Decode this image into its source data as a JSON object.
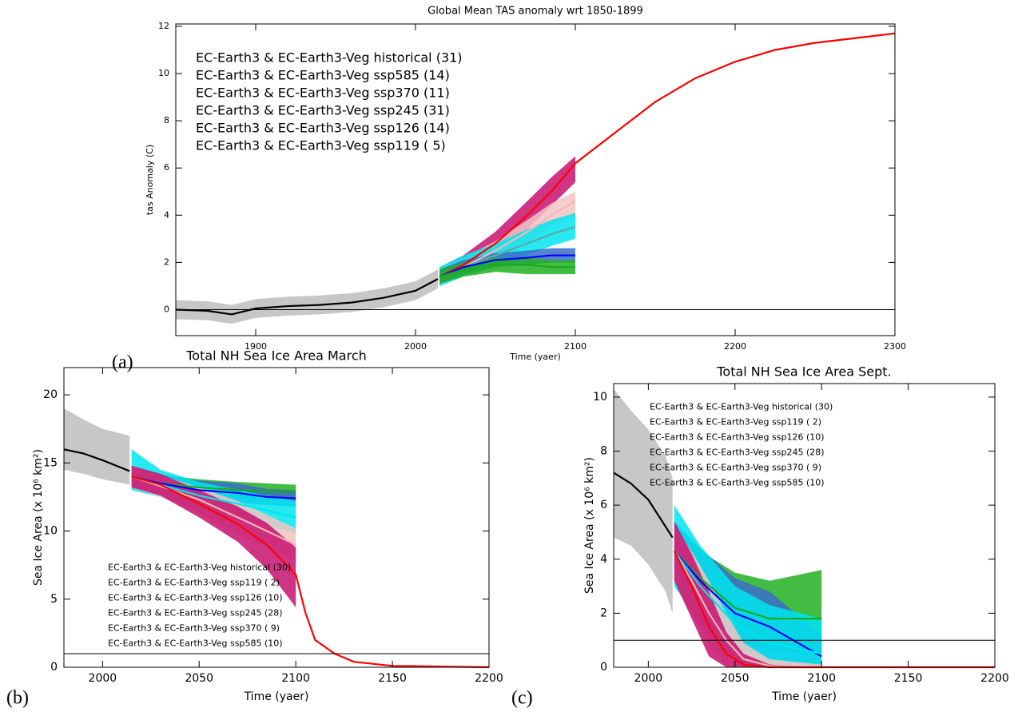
{
  "chart_data": [
    {
      "type": "line",
      "panel_label": "(a)",
      "title": "Global Mean TAS anomaly wrt 1850-1899",
      "xlabel": "Time (yaer)",
      "ylabel": "tas Anomaly (C)",
      "xlim": [
        1850,
        2300
      ],
      "ylim": [
        -1.1,
        12.1
      ],
      "xticks": [
        1900,
        2000,
        2100,
        2200,
        2300
      ],
      "yticks": [
        0,
        2,
        4,
        6,
        8,
        10,
        12
      ],
      "hline": 0,
      "legend_position": "upper left",
      "series": [
        {
          "name": "EC-Earth3 & EC-Earth3-Veg historical (31)",
          "color": "#000000",
          "band_color": "#bdbdbd",
          "x": [
            1850,
            1870,
            1885,
            1900,
            1920,
            1940,
            1960,
            1980,
            2000,
            2014
          ],
          "values": [
            0,
            -0.05,
            -0.2,
            0.05,
            0.15,
            0.2,
            0.3,
            0.5,
            0.8,
            1.3
          ],
          "low": [
            -0.4,
            -0.45,
            -0.6,
            -0.35,
            -0.25,
            -0.2,
            -0.1,
            0.1,
            0.4,
            0.9
          ],
          "high": [
            0.4,
            0.35,
            0.2,
            0.45,
            0.55,
            0.6,
            0.7,
            0.9,
            1.2,
            1.7
          ]
        },
        {
          "name": "EC-Earth3 & EC-Earth3-Veg ssp585 (14)",
          "color": "#ff0000",
          "band_color": "#c8106e",
          "x": [
            2015,
            2030,
            2050,
            2070,
            2085,
            2100,
            2125,
            2150,
            2175,
            2200,
            2225,
            2250,
            2275,
            2300
          ],
          "values": [
            1.4,
            1.9,
            2.8,
            4.0,
            5.0,
            6.2,
            7.5,
            8.8,
            9.8,
            10.5,
            11.0,
            11.3,
            11.5,
            11.7
          ],
          "low": [
            1.0,
            1.5,
            2.3,
            3.4,
            4.4,
            5.4,
            null,
            null,
            null,
            null,
            null,
            null,
            null,
            null
          ],
          "high": [
            1.8,
            2.3,
            3.3,
            4.6,
            5.6,
            6.5,
            null,
            null,
            null,
            null,
            null,
            null,
            null,
            null
          ]
        },
        {
          "name": "EC-Earth3 & EC-Earth3-Veg ssp370 (11)",
          "color": "#f4b6b6",
          "band_color": "#f4c4c4",
          "x": [
            2015,
            2030,
            2050,
            2070,
            2085,
            2100
          ],
          "values": [
            1.4,
            1.8,
            2.5,
            3.3,
            4.0,
            4.6
          ],
          "low": [
            1.0,
            1.4,
            2.1,
            2.8,
            3.5,
            4.0
          ],
          "high": [
            1.8,
            2.2,
            2.9,
            3.8,
            4.5,
            5.0
          ]
        },
        {
          "name": "EC-Earth3 & EC-Earth3-Veg ssp245 (31)",
          "color": "#5fa8a8",
          "band_color": "#00e5ee",
          "x": [
            2015,
            2030,
            2050,
            2070,
            2085,
            2100
          ],
          "values": [
            1.4,
            1.8,
            2.3,
            2.8,
            3.2,
            3.5
          ],
          "low": [
            1.0,
            1.4,
            1.8,
            2.3,
            2.7,
            3.0
          ],
          "high": [
            1.8,
            2.3,
            2.8,
            3.4,
            3.8,
            4.1
          ]
        },
        {
          "name": "EC-Earth3 & EC-Earth3-Veg ssp126 (14)",
          "color": "#0000ff",
          "band_color": "#3a6ec8",
          "x": [
            2015,
            2030,
            2050,
            2070,
            2085,
            2100
          ],
          "values": [
            1.4,
            1.8,
            2.1,
            2.2,
            2.3,
            2.3
          ],
          "low": [
            1.1,
            1.5,
            1.8,
            1.9,
            2.0,
            2.0
          ],
          "high": [
            1.7,
            2.1,
            2.4,
            2.5,
            2.6,
            2.6
          ]
        },
        {
          "name": "EC-Earth3 & EC-Earth3-Veg ssp119 ( 5)",
          "color": "#1aaa1a",
          "band_color": "#22b022",
          "x": [
            2015,
            2030,
            2050,
            2070,
            2085,
            2100
          ],
          "values": [
            1.4,
            1.7,
            1.9,
            1.9,
            1.8,
            1.8
          ],
          "low": [
            1.1,
            1.4,
            1.6,
            1.5,
            1.5,
            1.5
          ],
          "high": [
            1.7,
            2.0,
            2.2,
            2.2,
            2.1,
            2.1
          ]
        }
      ]
    },
    {
      "type": "line",
      "panel_label": "(b)",
      "title": "Total NH Sea Ice Area March",
      "xlabel": "Time (yaer)",
      "ylabel": "Sea Ice Area (x 10⁶ km²)",
      "xlim": [
        1980,
        2200
      ],
      "ylim": [
        0,
        22
      ],
      "xticks": [
        2000,
        2050,
        2100,
        2150,
        2200
      ],
      "yticks": [
        0,
        5,
        10,
        15,
        20
      ],
      "hline": 1,
      "legend_position": "lower left",
      "series": [
        {
          "name": "EC-Earth3 & EC-Earth3-Veg historical (30)",
          "color": "#000000",
          "band_color": "#bdbdbd",
          "x": [
            1980,
            1990,
            2000,
            2014
          ],
          "values": [
            16,
            15.7,
            15.2,
            14.4
          ],
          "low": [
            14.5,
            14.2,
            13.8,
            13.4
          ],
          "high": [
            19,
            18.2,
            17.5,
            17.0
          ]
        },
        {
          "name": "EC-Earth3 & EC-Earth3-Veg ssp119 ( 2)",
          "color": "#1aaa1a",
          "band_color": "#22b022",
          "x": [
            2015,
            2030,
            2050,
            2070,
            2085,
            2100
          ],
          "values": [
            14,
            13.5,
            13.2,
            13,
            12.9,
            12.9
          ],
          "low": [
            13.4,
            12.9,
            12.6,
            12.4,
            12.3,
            12.3
          ],
          "high": [
            14.6,
            14.1,
            13.8,
            13.6,
            13.5,
            13.4
          ]
        },
        {
          "name": "EC-Earth3 & EC-Earth3-Veg ssp126 (10)",
          "color": "#0000ff",
          "band_color": "#3a6ec8",
          "x": [
            2015,
            2030,
            2050,
            2070,
            2085,
            2100
          ],
          "values": [
            14,
            13.5,
            13,
            12.8,
            12.5,
            12.4
          ],
          "low": [
            13.2,
            12.8,
            12.3,
            12.1,
            11.9,
            11.8
          ],
          "high": [
            14.8,
            14.2,
            13.7,
            13.5,
            13.1,
            13.0
          ]
        },
        {
          "name": "EC-Earth3 & EC-Earth3-Veg ssp245 (28)",
          "color": "#00e5ee",
          "band_color": "#00e5ee",
          "x": [
            2015,
            2030,
            2050,
            2070,
            2085,
            2100
          ],
          "values": [
            14,
            13.4,
            12.6,
            12,
            11.5,
            11
          ],
          "low": [
            13.0,
            12.5,
            11.7,
            11.0,
            10.4,
            9.8
          ],
          "high": [
            16.0,
            14.5,
            13.6,
            13.0,
            12.6,
            12.2
          ]
        },
        {
          "name": "EC-Earth3 & EC-Earth3-Veg ssp370 ( 9)",
          "color": "#f4b6b6",
          "band_color": "#f4c4c4",
          "x": [
            2015,
            2030,
            2050,
            2070,
            2085,
            2100
          ],
          "values": [
            14,
            13.3,
            12.3,
            11,
            10,
            9
          ],
          "low": [
            13.2,
            12.5,
            11.3,
            9.8,
            8.8,
            7.8
          ],
          "high": [
            14.8,
            14.1,
            13.2,
            12.2,
            11.2,
            10.2
          ]
        },
        {
          "name": "EC-Earth3 & EC-Earth3-Veg ssp585 (10)",
          "color": "#ff0000",
          "band_color": "#c8106e",
          "x": [
            2015,
            2030,
            2050,
            2070,
            2085,
            2100,
            2105,
            2110,
            2120,
            2130,
            2150,
            2200
          ],
          "values": [
            14,
            13.4,
            12,
            10.5,
            9,
            6.8,
            4,
            2,
            1,
            0.4,
            0.1,
            0
          ],
          "low": [
            13.2,
            12.6,
            11,
            9.2,
            7.2,
            4.4,
            null,
            null,
            null,
            null,
            null,
            null
          ],
          "high": [
            14.8,
            14.2,
            13,
            11.8,
            10.6,
            8.8,
            null,
            null,
            null,
            null,
            null,
            null
          ]
        }
      ]
    },
    {
      "type": "line",
      "panel_label": "(c)",
      "title": "Total NH Sea Ice Area Sept.",
      "xlabel": "Time (yaer)",
      "ylabel": "Sea Ice Area (x 10⁶ km²)",
      "xlim": [
        1980,
        2200
      ],
      "ylim": [
        0,
        10.5
      ],
      "xticks": [
        2000,
        2050,
        2100,
        2150,
        2200
      ],
      "yticks": [
        0,
        2,
        4,
        6,
        8,
        10
      ],
      "hline": 1,
      "legend_position": "upper left",
      "series": [
        {
          "name": "EC-Earth3 & EC-Earth3-Veg historical (30)",
          "color": "#000000",
          "band_color": "#bdbdbd",
          "x": [
            1980,
            1990,
            2000,
            2010,
            2014
          ],
          "values": [
            7.2,
            6.8,
            6.2,
            5.2,
            4.8
          ],
          "low": [
            4.8,
            4.5,
            3.8,
            2.8,
            2.0
          ],
          "high": [
            10.3,
            9.5,
            8.8,
            7.8,
            7.0
          ]
        },
        {
          "name": "EC-Earth3 & EC-Earth3-Veg ssp119 ( 2)",
          "color": "#1aaa1a",
          "band_color": "#22b022",
          "x": [
            2015,
            2030,
            2050,
            2070,
            2100
          ],
          "values": [
            4.3,
            3.3,
            2.2,
            1.8,
            1.8
          ],
          "low": [
            3.4,
            2.3,
            1.0,
            0.6,
            0.5
          ],
          "high": [
            5.2,
            4.3,
            3.5,
            3.2,
            3.6
          ]
        },
        {
          "name": "EC-Earth3 & EC-Earth3-Veg ssp126 (10)",
          "color": "#0000ff",
          "band_color": "#3a6ec8",
          "x": [
            2015,
            2030,
            2050,
            2070,
            2100
          ],
          "values": [
            4.3,
            3.2,
            2.0,
            1.5,
            0.4
          ],
          "low": [
            3.2,
            2.0,
            0.7,
            0.3,
            0
          ],
          "high": [
            5.4,
            4.4,
            3.3,
            2.8,
            1.2
          ]
        },
        {
          "name": "EC-Earth3 & EC-Earth3-Veg ssp245 (28)",
          "color": "#00e5ee",
          "band_color": "#00e5ee",
          "x": [
            2015,
            2030,
            2050,
            2070,
            2100
          ],
          "values": [
            4.3,
            3.0,
            1.6,
            0.9,
            0.5
          ],
          "low": [
            3.0,
            1.6,
            0.2,
            0,
            0
          ],
          "high": [
            6.0,
            4.5,
            3.0,
            2.3,
            1.8
          ]
        },
        {
          "name": "EC-Earth3 & EC-Earth3-Veg ssp370 ( 9)",
          "color": "#f4b6b6",
          "band_color": "#f4c4c4",
          "x": [
            2015,
            2025,
            2035,
            2045,
            2055,
            2070,
            2100
          ],
          "values": [
            4.3,
            3.2,
            2,
            1,
            0.3,
            0.05,
            0
          ],
          "low": [
            3.2,
            2.0,
            0.8,
            0.1,
            0,
            0,
            0
          ],
          "high": [
            5.2,
            4.3,
            3.2,
            2.0,
            0.9,
            0.3,
            0.1
          ]
        },
        {
          "name": "EC-Earth3 & EC-Earth3-Veg ssp585 (10)",
          "color": "#ff0000",
          "band_color": "#c8106e",
          "x": [
            2015,
            2025,
            2035,
            2045,
            2055,
            2070,
            2100,
            2200
          ],
          "values": [
            4.3,
            3,
            1.5,
            0.5,
            0.1,
            0,
            0,
            0
          ],
          "low": [
            3.2,
            1.8,
            0.4,
            0,
            0,
            0,
            0,
            null
          ],
          "high": [
            5.4,
            4.2,
            2.8,
            1.3,
            0.5,
            0.1,
            0,
            null
          ]
        }
      ]
    }
  ]
}
